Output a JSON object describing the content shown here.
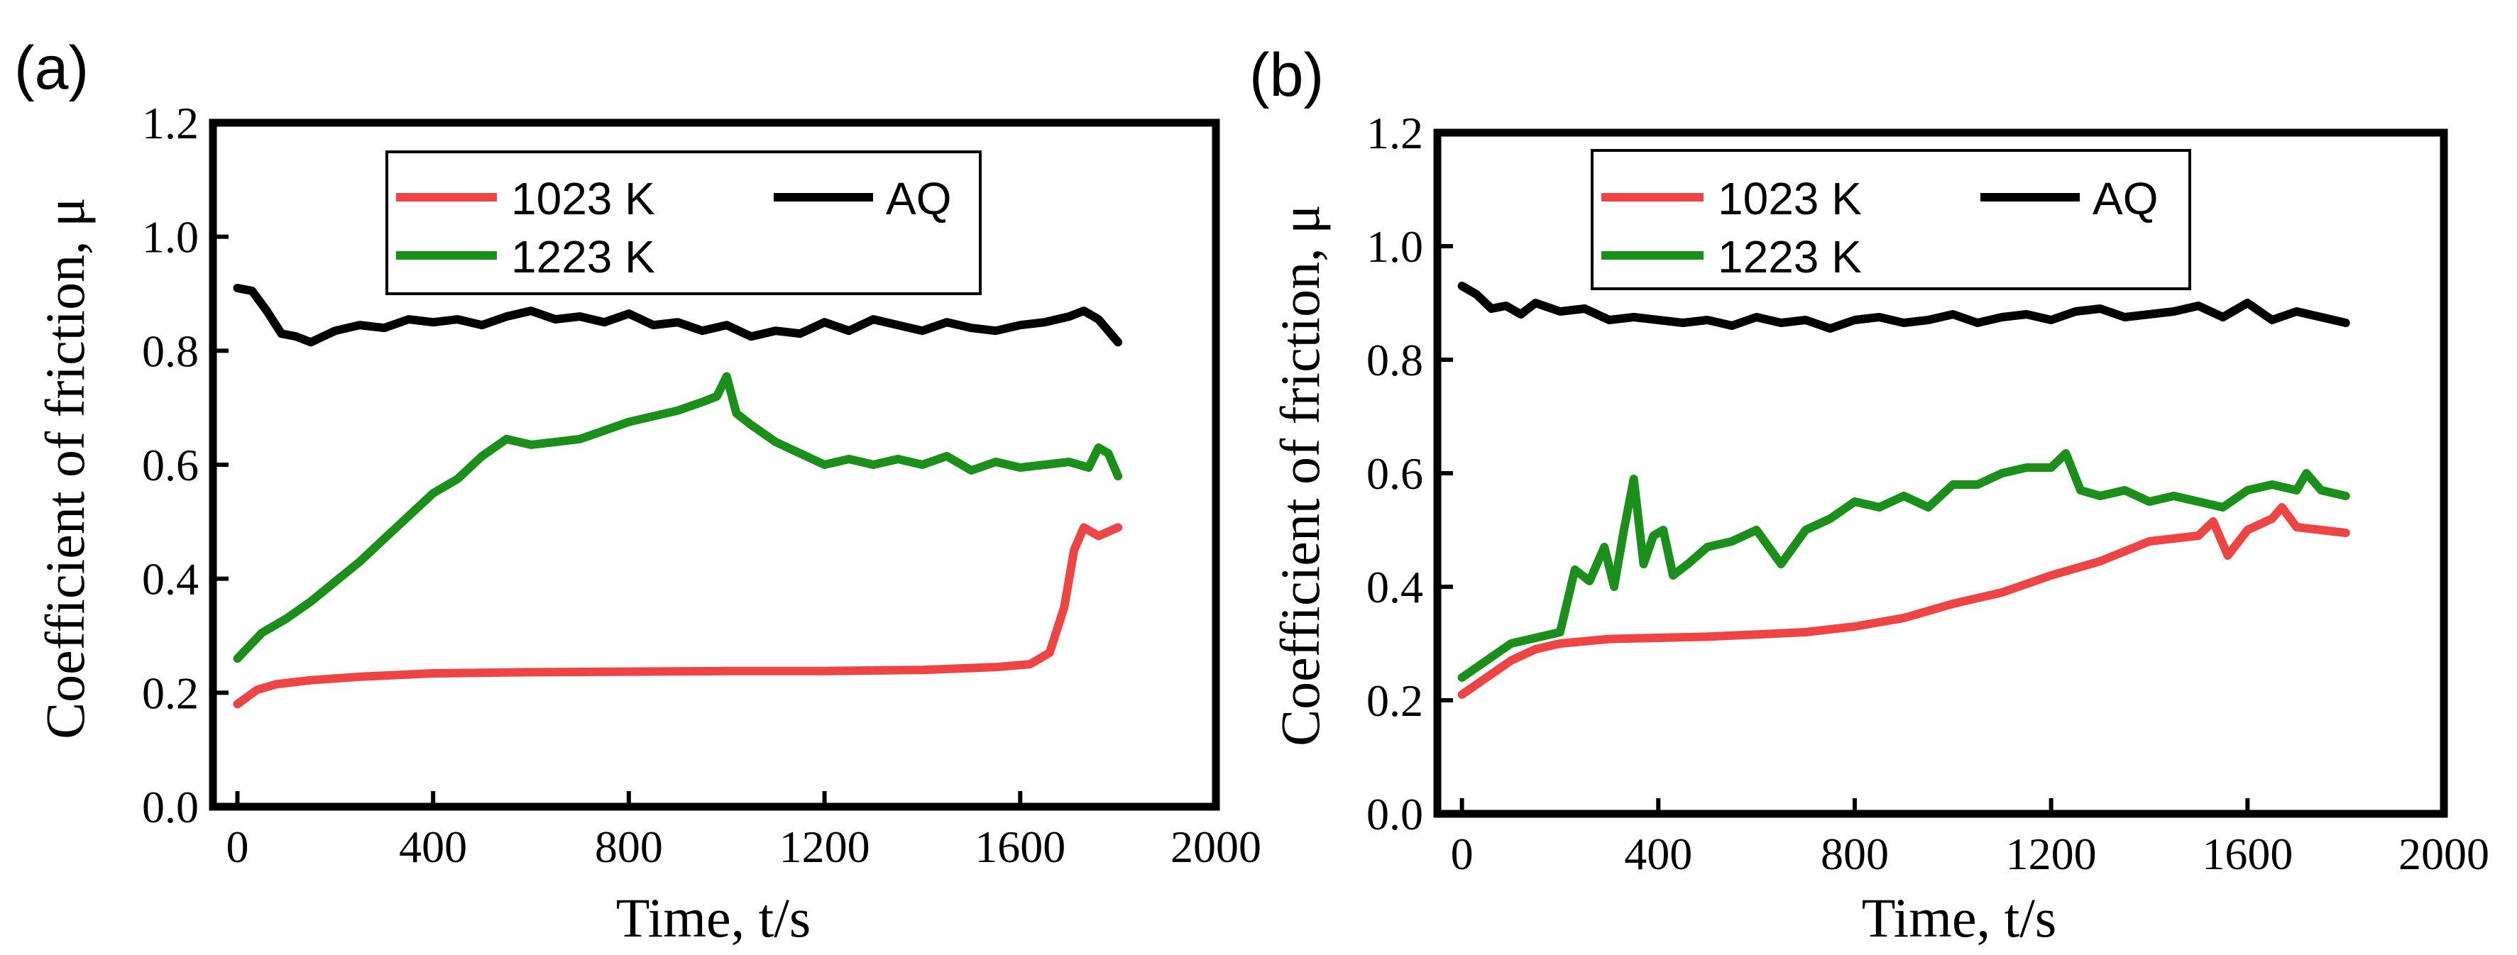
{
  "chart_data": [
    {
      "panel_label": "(a)",
      "type": "line",
      "xlabel": "Time, t/s",
      "ylabel": "Coefficient of friction, μ",
      "xlim": [
        -50,
        2000
      ],
      "ylim": [
        0.0,
        1.2
      ],
      "xticks": [
        0,
        400,
        800,
        1200,
        1600,
        2000
      ],
      "xtick_labels": [
        "0",
        "400",
        "800",
        "1200",
        "1600",
        "2000"
      ],
      "yticks": [
        0.0,
        0.2,
        0.4,
        0.6,
        0.8,
        1.0,
        1.2
      ],
      "ytick_labels": [
        "0.0",
        "0.2",
        "0.4",
        "0.6",
        "0.8",
        "1.0",
        "1.2"
      ],
      "legend_position": "top-center",
      "series": [
        {
          "name": "1023 K",
          "legend": "1023 K",
          "color": "#ee4444",
          "x": [
            0,
            40,
            80,
            150,
            250,
            400,
            600,
            800,
            1000,
            1200,
            1400,
            1550,
            1620,
            1660,
            1690,
            1710,
            1730,
            1760,
            1800
          ],
          "y": [
            0.18,
            0.205,
            0.215,
            0.222,
            0.228,
            0.234,
            0.236,
            0.237,
            0.238,
            0.238,
            0.24,
            0.245,
            0.25,
            0.27,
            0.35,
            0.45,
            0.49,
            0.475,
            0.49
          ]
        },
        {
          "name": "1223 K",
          "legend": "1223 K",
          "color": "#1a8f1a",
          "x": [
            0,
            50,
            100,
            150,
            200,
            250,
            300,
            350,
            400,
            450,
            500,
            550,
            600,
            650,
            700,
            750,
            800,
            850,
            900,
            950,
            980,
            1000,
            1020,
            1050,
            1100,
            1150,
            1200,
            1250,
            1300,
            1350,
            1400,
            1450,
            1500,
            1550,
            1600,
            1650,
            1700,
            1740,
            1760,
            1780,
            1800
          ],
          "y": [
            0.26,
            0.305,
            0.33,
            0.36,
            0.395,
            0.43,
            0.47,
            0.51,
            0.55,
            0.575,
            0.615,
            0.645,
            0.635,
            0.64,
            0.645,
            0.66,
            0.675,
            0.685,
            0.695,
            0.71,
            0.72,
            0.755,
            0.69,
            0.67,
            0.64,
            0.62,
            0.6,
            0.61,
            0.6,
            0.61,
            0.6,
            0.615,
            0.59,
            0.605,
            0.595,
            0.6,
            0.605,
            0.595,
            0.63,
            0.62,
            0.58
          ]
        },
        {
          "name": "AQ",
          "legend": "AQ",
          "color": "#000000",
          "x": [
            0,
            30,
            60,
            90,
            120,
            150,
            200,
            250,
            300,
            350,
            400,
            450,
            500,
            550,
            600,
            650,
            700,
            750,
            800,
            850,
            900,
            950,
            1000,
            1050,
            1100,
            1150,
            1200,
            1250,
            1300,
            1350,
            1400,
            1450,
            1500,
            1550,
            1600,
            1650,
            1700,
            1730,
            1760,
            1800
          ],
          "y": [
            0.91,
            0.905,
            0.87,
            0.83,
            0.825,
            0.815,
            0.835,
            0.845,
            0.84,
            0.855,
            0.85,
            0.855,
            0.845,
            0.86,
            0.87,
            0.855,
            0.86,
            0.85,
            0.865,
            0.845,
            0.85,
            0.835,
            0.845,
            0.825,
            0.835,
            0.83,
            0.85,
            0.835,
            0.855,
            0.845,
            0.835,
            0.85,
            0.84,
            0.835,
            0.845,
            0.85,
            0.86,
            0.87,
            0.855,
            0.815
          ]
        }
      ]
    },
    {
      "panel_label": "(b)",
      "type": "line",
      "xlabel": "Time, t/s",
      "ylabel": "Coefficient of friction, μ",
      "xlim": [
        -50,
        2000
      ],
      "ylim": [
        0.0,
        1.2
      ],
      "xticks": [
        0,
        400,
        800,
        1200,
        1600,
        2000
      ],
      "xtick_labels": [
        "0",
        "400",
        "800",
        "1200",
        "1600",
        "2000"
      ],
      "yticks": [
        0.0,
        0.2,
        0.4,
        0.6,
        0.8,
        1.0,
        1.2
      ],
      "ytick_labels": [
        "0.0",
        "0.2",
        "0.4",
        "0.6",
        "0.8",
        "1.0",
        "1.2"
      ],
      "legend_position": "top-center",
      "series": [
        {
          "name": "1023 K",
          "legend": "1023 K",
          "color": "#ee4444",
          "x": [
            0,
            50,
            100,
            150,
            200,
            300,
            400,
            500,
            600,
            700,
            800,
            900,
            1000,
            1100,
            1200,
            1300,
            1400,
            1450,
            1500,
            1530,
            1560,
            1600,
            1650,
            1670,
            1700,
            1750,
            1800
          ],
          "y": [
            0.21,
            0.24,
            0.27,
            0.29,
            0.3,
            0.308,
            0.31,
            0.312,
            0.316,
            0.32,
            0.33,
            0.345,
            0.37,
            0.39,
            0.42,
            0.445,
            0.48,
            0.485,
            0.49,
            0.515,
            0.455,
            0.5,
            0.52,
            0.54,
            0.505,
            0.5,
            0.495
          ]
        },
        {
          "name": "1223 K",
          "legend": "1223 K",
          "color": "#1a8f1a",
          "x": [
            0,
            50,
            100,
            150,
            200,
            230,
            260,
            290,
            310,
            330,
            350,
            370,
            390,
            410,
            430,
            460,
            500,
            550,
            600,
            650,
            700,
            750,
            800,
            850,
            900,
            950,
            1000,
            1050,
            1100,
            1150,
            1200,
            1230,
            1260,
            1300,
            1350,
            1400,
            1450,
            1500,
            1550,
            1600,
            1650,
            1700,
            1720,
            1750,
            1800
          ],
          "y": [
            0.24,
            0.27,
            0.3,
            0.31,
            0.32,
            0.43,
            0.41,
            0.47,
            0.4,
            0.5,
            0.59,
            0.44,
            0.49,
            0.5,
            0.42,
            0.44,
            0.47,
            0.48,
            0.5,
            0.44,
            0.5,
            0.52,
            0.55,
            0.54,
            0.56,
            0.54,
            0.58,
            0.58,
            0.6,
            0.61,
            0.61,
            0.635,
            0.57,
            0.56,
            0.57,
            0.55,
            0.56,
            0.55,
            0.54,
            0.57,
            0.58,
            0.57,
            0.6,
            0.57,
            0.56
          ]
        },
        {
          "name": "AQ",
          "legend": "AQ",
          "color": "#000000",
          "x": [
            0,
            30,
            60,
            90,
            120,
            150,
            200,
            250,
            300,
            350,
            400,
            450,
            500,
            550,
            600,
            650,
            700,
            750,
            800,
            850,
            900,
            950,
            1000,
            1050,
            1100,
            1150,
            1200,
            1250,
            1300,
            1350,
            1400,
            1450,
            1500,
            1550,
            1600,
            1650,
            1700,
            1750,
            1800
          ],
          "y": [
            0.93,
            0.915,
            0.89,
            0.895,
            0.88,
            0.9,
            0.885,
            0.89,
            0.87,
            0.875,
            0.87,
            0.865,
            0.87,
            0.86,
            0.875,
            0.865,
            0.87,
            0.855,
            0.87,
            0.875,
            0.865,
            0.87,
            0.88,
            0.865,
            0.875,
            0.88,
            0.87,
            0.885,
            0.89,
            0.875,
            0.88,
            0.885,
            0.895,
            0.875,
            0.9,
            0.87,
            0.885,
            0.875,
            0.865
          ]
        }
      ]
    }
  ]
}
